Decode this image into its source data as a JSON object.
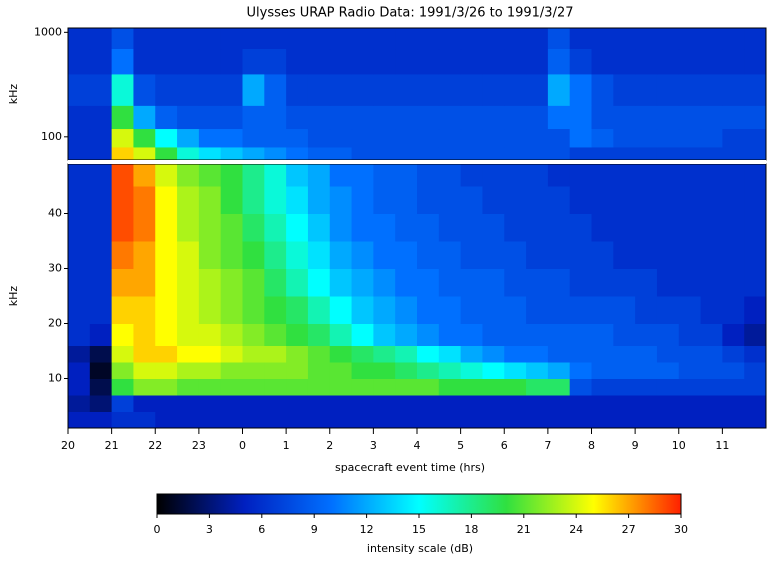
{
  "chart_data": {
    "type": "heatmap",
    "title": "Ulysses URAP Radio Data: 1991/3/26 to 1991/3/27",
    "x_label": "spacecraft event time (hrs)",
    "xlim": [
      20,
      36
    ],
    "xticks": [
      20,
      21,
      22,
      23,
      {
        "value": 24,
        "label": "0"
      },
      {
        "value": 25,
        "label": "1"
      },
      {
        "value": 26,
        "label": "2"
      },
      {
        "value": 27,
        "label": "3"
      },
      {
        "value": 28,
        "label": "4"
      },
      {
        "value": 29,
        "label": "5"
      },
      {
        "value": 30,
        "label": "6"
      },
      {
        "value": 31,
        "label": "7"
      },
      {
        "value": 32,
        "label": "8"
      },
      {
        "value": 33,
        "label": "9"
      },
      {
        "value": 34,
        "label": "10"
      },
      {
        "value": 35,
        "label": "11"
      }
    ],
    "x_bins": [
      20,
      20.5,
      21,
      21.5,
      22,
      22.5,
      23,
      23.5,
      24,
      24.5,
      25,
      25.5,
      26,
      26.5,
      27,
      27.5,
      28,
      28.5,
      29,
      29.5,
      30,
      30.5,
      31,
      31.5,
      32,
      32.5,
      33,
      33.5,
      34,
      34.5,
      35,
      35.5,
      36
    ],
    "panels": [
      {
        "y_label": "kHz",
        "log": true,
        "ylim": [
          60,
          1100
        ],
        "yticks": [
          100,
          1000
        ],
        "y_bins": [
          60,
          80,
          120,
          200,
          400,
          700,
          1100
        ],
        "values": [
          [
            6,
            6,
            26,
            24,
            20,
            16,
            14,
            13,
            12,
            11,
            10,
            9,
            9,
            8,
            8,
            8,
            8,
            8,
            8,
            8,
            8,
            8,
            8,
            7,
            7,
            7,
            7,
            7,
            7,
            7,
            7,
            7
          ],
          [
            6,
            6,
            24,
            20,
            15,
            12,
            10,
            10,
            9,
            9,
            9,
            8,
            8,
            8,
            8,
            8,
            8,
            8,
            8,
            8,
            8,
            8,
            8,
            10,
            9,
            8,
            8,
            8,
            8,
            8,
            7,
            7
          ],
          [
            6,
            6,
            20,
            12,
            9,
            8,
            8,
            8,
            9,
            9,
            8,
            8,
            8,
            8,
            8,
            8,
            8,
            8,
            8,
            8,
            8,
            8,
            10,
            10,
            8,
            8,
            8,
            8,
            8,
            8,
            8,
            8
          ],
          [
            7,
            7,
            16,
            8,
            7,
            7,
            7,
            7,
            12,
            9,
            7,
            7,
            7,
            7,
            7,
            7,
            7,
            7,
            7,
            7,
            7,
            7,
            12,
            10,
            8,
            7,
            7,
            7,
            7,
            7,
            7,
            7
          ],
          [
            6,
            6,
            10,
            6,
            6,
            6,
            6,
            6,
            7,
            7,
            6,
            6,
            6,
            6,
            6,
            6,
            6,
            6,
            6,
            6,
            6,
            6,
            9,
            7,
            6,
            6,
            6,
            6,
            6,
            6,
            6,
            6
          ],
          [
            6,
            6,
            8,
            6,
            6,
            6,
            6,
            6,
            6,
            6,
            6,
            6,
            6,
            6,
            6,
            6,
            6,
            6,
            6,
            6,
            6,
            6,
            8,
            6,
            6,
            6,
            6,
            6,
            6,
            6,
            6,
            6
          ]
        ]
      },
      {
        "y_label": "kHz",
        "log": false,
        "ylim": [
          1,
          49
        ],
        "yticks": [
          10,
          20,
          30,
          40
        ],
        "y_bins": [
          1,
          4,
          7,
          10,
          13,
          16,
          20,
          25,
          30,
          35,
          40,
          45,
          49
        ],
        "values": [
          [
            5,
            5,
            6,
            6,
            5,
            5,
            5,
            5,
            5,
            5,
            5,
            5,
            5,
            5,
            5,
            5,
            5,
            5,
            5,
            5,
            5,
            5,
            5,
            5,
            5,
            5,
            5,
            5,
            5,
            5,
            5,
            5
          ],
          [
            4,
            3,
            7,
            5,
            5,
            5,
            5,
            5,
            5,
            5,
            5,
            5,
            5,
            5,
            5,
            5,
            5,
            5,
            5,
            5,
            5,
            5,
            5,
            5,
            5,
            5,
            5,
            5,
            5,
            5,
            5,
            5
          ],
          [
            5,
            2,
            20,
            22,
            22,
            21,
            21,
            21,
            21,
            21,
            21,
            21,
            21,
            21,
            21,
            21,
            21,
            20,
            20,
            20,
            20,
            19,
            19,
            8,
            7,
            7,
            7,
            7,
            7,
            7,
            7,
            7
          ],
          [
            5,
            1,
            22,
            24,
            24,
            23,
            23,
            22,
            22,
            22,
            22,
            21,
            21,
            20,
            20,
            19,
            18,
            17,
            16,
            15,
            14,
            13,
            12,
            10,
            9,
            9,
            9,
            9,
            8,
            8,
            8,
            7
          ],
          [
            4,
            2,
            24,
            26,
            26,
            25,
            25,
            24,
            23,
            23,
            22,
            21,
            20,
            19,
            18,
            17,
            15,
            14,
            12,
            11,
            10,
            10,
            9,
            9,
            9,
            9,
            9,
            8,
            8,
            8,
            7,
            6
          ],
          [
            6,
            5,
            25,
            26,
            25,
            24,
            24,
            23,
            22,
            21,
            20,
            19,
            17,
            15,
            13,
            12,
            11,
            10,
            10,
            9,
            9,
            9,
            9,
            9,
            9,
            8,
            8,
            8,
            7,
            7,
            5,
            4
          ],
          [
            6,
            6,
            26,
            26,
            25,
            24,
            23,
            22,
            21,
            20,
            19,
            17,
            15,
            13,
            12,
            11,
            10,
            10,
            9,
            9,
            9,
            8,
            8,
            8,
            8,
            8,
            7,
            7,
            7,
            6,
            6,
            5
          ],
          [
            6,
            6,
            27,
            27,
            25,
            24,
            23,
            22,
            21,
            19,
            17,
            15,
            13,
            12,
            11,
            10,
            10,
            9,
            9,
            9,
            8,
            8,
            8,
            7,
            7,
            7,
            7,
            6,
            6,
            6,
            6,
            6
          ],
          [
            6,
            6,
            28,
            27,
            25,
            24,
            22,
            21,
            20,
            18,
            16,
            14,
            12,
            11,
            10,
            10,
            9,
            9,
            8,
            8,
            8,
            7,
            7,
            7,
            7,
            6,
            6,
            6,
            6,
            6,
            6,
            6
          ],
          [
            6,
            6,
            29,
            28,
            25,
            23,
            22,
            21,
            19,
            17,
            15,
            13,
            11,
            10,
            10,
            9,
            9,
            8,
            8,
            8,
            7,
            7,
            7,
            7,
            6,
            6,
            6,
            6,
            6,
            6,
            6,
            6
          ],
          [
            6,
            6,
            29,
            28,
            25,
            23,
            22,
            20,
            18,
            16,
            14,
            12,
            11,
            10,
            9,
            9,
            8,
            8,
            8,
            7,
            7,
            7,
            7,
            6,
            6,
            6,
            6,
            6,
            6,
            6,
            6,
            6
          ],
          [
            6,
            6,
            29,
            27,
            24,
            22,
            21,
            20,
            18,
            16,
            13,
            12,
            10,
            10,
            9,
            9,
            8,
            8,
            7,
            7,
            7,
            7,
            6,
            6,
            6,
            6,
            6,
            6,
            6,
            6,
            6,
            6
          ]
        ]
      }
    ],
    "colorbar": {
      "label": "intensity scale (dB)",
      "lim": [
        0,
        30
      ],
      "ticks": [
        0,
        3,
        6,
        9,
        12,
        15,
        18,
        21,
        24,
        27,
        30
      ],
      "colormap": [
        "#000000",
        "#0020c0",
        "#0070ff",
        "#00ffff",
        "#30e040",
        "#ffff00",
        "#ff2000"
      ]
    }
  }
}
